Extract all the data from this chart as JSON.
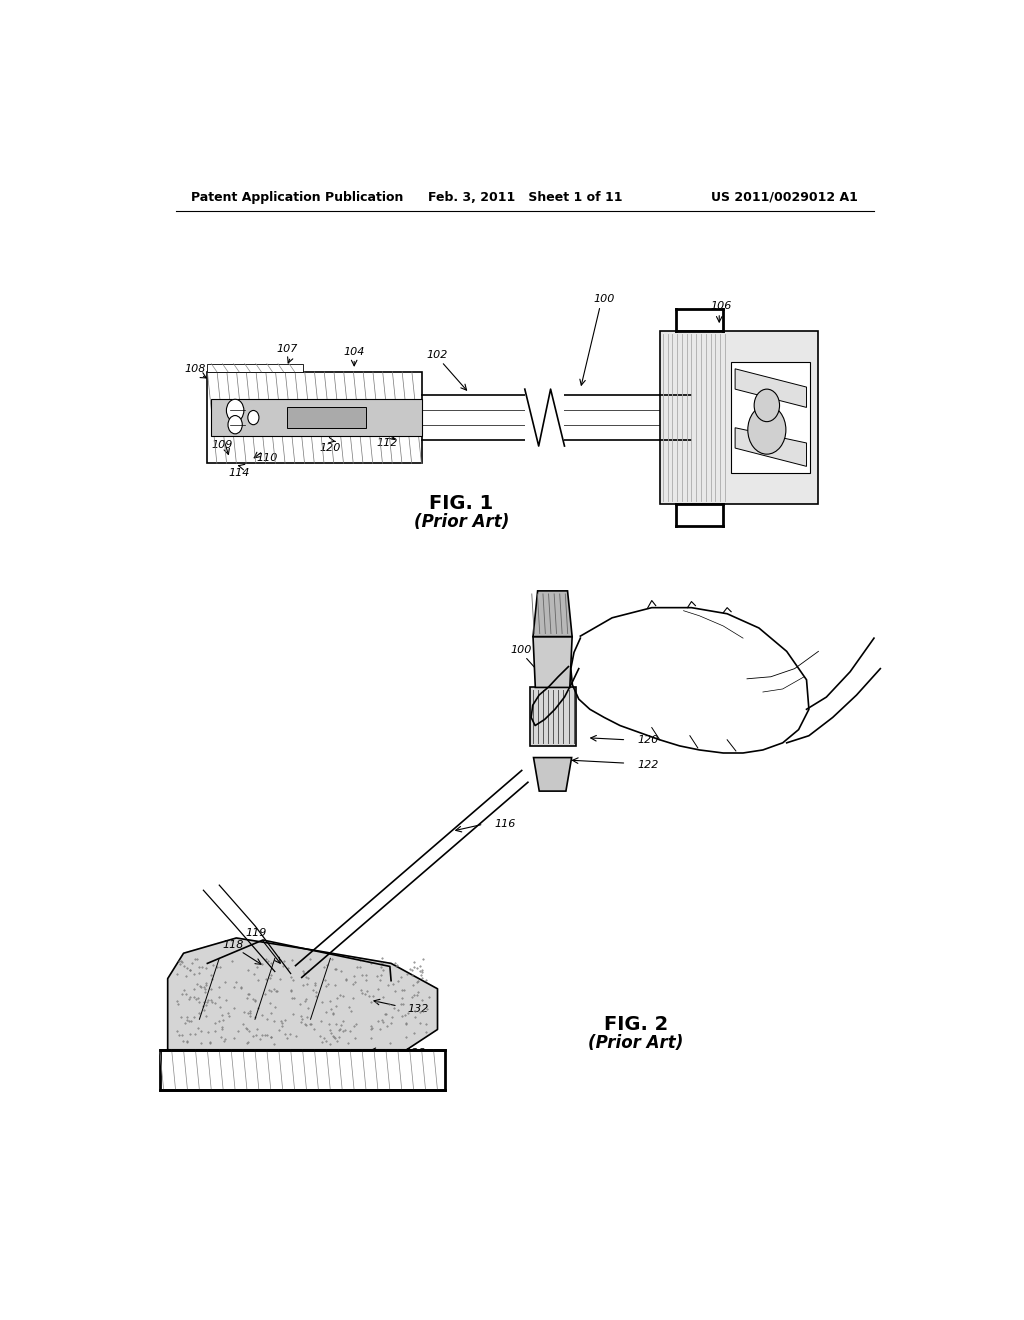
{
  "header_left": "Patent Application Publication",
  "header_mid": "Feb. 3, 2011   Sheet 1 of 11",
  "header_right": "US 2011/0029012 A1",
  "fig1_caption": "FIG. 1",
  "fig1_subcaption": "(Prior Art)",
  "fig2_caption": "FIG. 2",
  "fig2_subcaption": "(Prior Art)",
  "background_color": "#ffffff",
  "line_color": "#000000"
}
